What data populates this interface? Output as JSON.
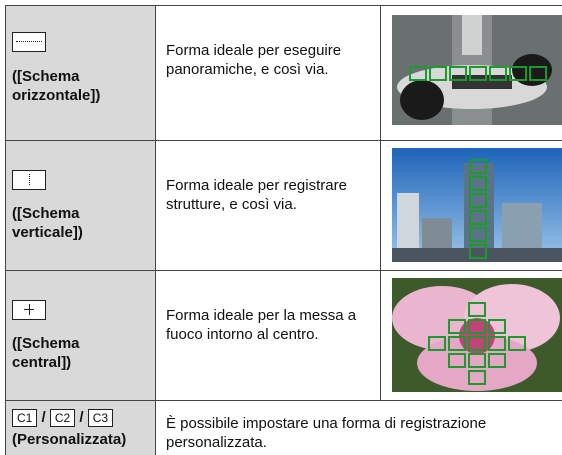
{
  "table": {
    "rows": [
      {
        "label": "([Schema orizzontale])",
        "description": "Forma ideale per eseguire panoramiche, e così via."
      },
      {
        "label": "([Schema verticale])",
        "description": "Forma ideale per registrare strutture, e così via."
      },
      {
        "label": "([Schema central])",
        "description": "Forma ideale per la messa a fuoco intorno al centro."
      },
      {
        "icons": [
          "C1",
          "C2",
          "C3"
        ],
        "separator": "/",
        "label": "(Personalizzata)",
        "description": "È possibile impostare una forma di registrazione personalizzata."
      }
    ]
  }
}
